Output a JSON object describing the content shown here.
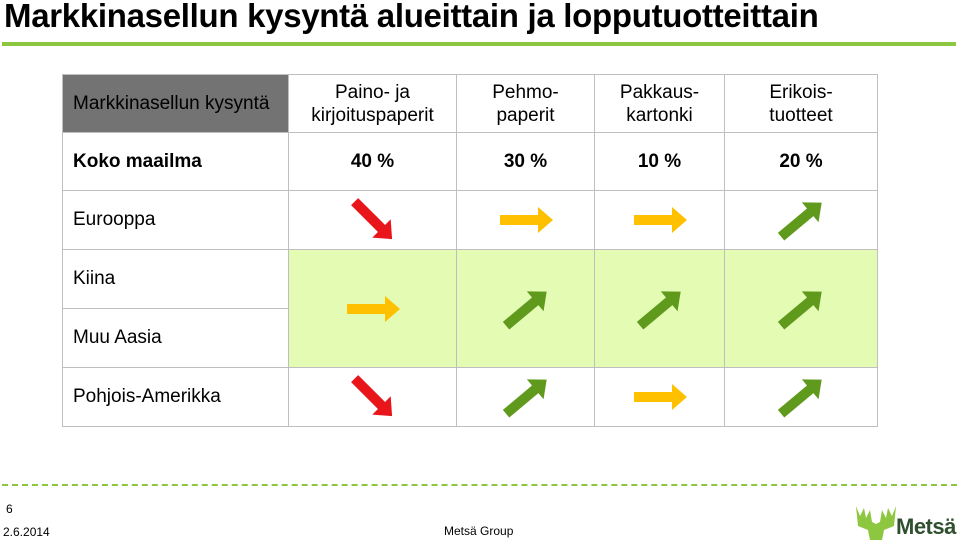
{
  "slide": {
    "title": "Markkinasellun kysyntä alueittain ja lopputuotteittain",
    "page_number": "6",
    "date": "2.6.2014",
    "footer_center": "Metsä Group",
    "logo_text": "Metsä"
  },
  "colors": {
    "accent_green": "#8dc63f",
    "highlight_bg": "#e3fbb3",
    "header_dark": "#737373",
    "arrow_down": "#e8151b",
    "arrow_flat": "#ffc000",
    "arrow_up": "#5f9a1c"
  },
  "table": {
    "corner_header": "Markkinasellun kysyntä",
    "columns": [
      {
        "line1": "Paino- ja",
        "line2": "kirjoituspaperit"
      },
      {
        "line1": "Pehmo-",
        "line2": "paperit"
      },
      {
        "line1": "Pakkaus-",
        "line2": "kartonki"
      },
      {
        "line1": "Erikois-",
        "line2": "tuotteet"
      }
    ],
    "share_row_label": "Koko maailma",
    "shares": [
      "40 %",
      "30 %",
      "10 %",
      "20 %"
    ],
    "regions": [
      {
        "label": "Eurooppa",
        "trends": [
          "down",
          "flat",
          "flat",
          "up"
        ]
      },
      {
        "label": "Kiina",
        "trends": [
          "flat",
          "up",
          "up",
          "up"
        ],
        "note": "shared with Muu Aasia"
      },
      {
        "label": "Muu Aasia"
      },
      {
        "label": "Pohjois-Amerikka",
        "trends": [
          "down",
          "up",
          "flat",
          "up"
        ]
      }
    ]
  }
}
